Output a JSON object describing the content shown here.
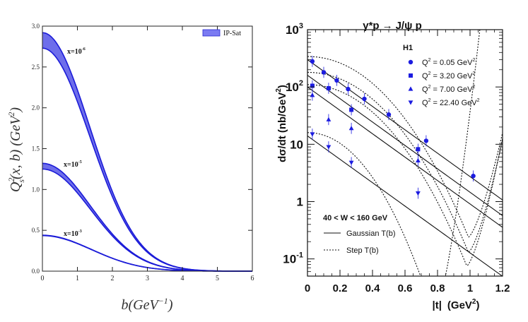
{
  "chart_data": [
    {
      "type": "area",
      "title": "",
      "xlabel": "b(GeV^-1)",
      "ylabel": "Q_s^2(x, b) (GeV^2)",
      "xlim": [
        0,
        6
      ],
      "ylim": [
        0,
        3.0
      ],
      "x_ticks": [
        "0",
        "1",
        "2",
        "3",
        "4",
        "5",
        "6"
      ],
      "y_ticks": [
        "0.0",
        "0.5",
        "1.0",
        "1.5",
        "2.0",
        "2.5",
        "3.0"
      ],
      "legend": {
        "label": "IP-Sat",
        "position": "top-right",
        "color": "#7b7bf2"
      },
      "band_color": "#5555e8",
      "line_color": "#1b1bd8",
      "series": [
        {
          "name": "x=10^-6",
          "label_base": "x=10",
          "label_exp": "-6",
          "upper_b0": 2.92,
          "lower_b0": 2.73,
          "sigma": 1.35
        },
        {
          "name": "x=10^-5",
          "label_base": "x=10",
          "label_exp": "-5",
          "upper_b0": 1.32,
          "lower_b0": 1.25,
          "sigma": 1.37
        },
        {
          "name": "x=10^-3",
          "label_base": "x=10",
          "label_exp": "-3",
          "upper_b0": 0.44,
          "lower_b0": 0.435,
          "sigma": 1.4
        }
      ]
    },
    {
      "type": "scatter",
      "title_parts": {
        "lhs": "γ*p",
        "arrow": "→",
        "rhs": "J/ψ p"
      },
      "xlabel_main": "|t|",
      "xlabel_unit_open": "(GeV",
      "xlabel_unit_exp": "2",
      "xlabel_unit_close": ")",
      "ylabel_main": "dσ/dt",
      "ylabel_unit_open": "(nb/GeV",
      "ylabel_unit_exp": "2",
      "ylabel_unit_close": ")",
      "xlim": [
        0,
        1.2
      ],
      "ylim_log10": [
        -1.3,
        3.0
      ],
      "y_scale": "log",
      "x_ticks": [
        "0",
        "0.2",
        "0.4",
        "0.6",
        "0.8",
        "1",
        "1.2"
      ],
      "y_ticks": [
        {
          "base": "10",
          "exp": "-1",
          "value": 0.1
        },
        {
          "base": "1",
          "exp": "",
          "value": 1
        },
        {
          "base": "10",
          "exp": "",
          "value": 10
        },
        {
          "base": "10",
          "exp": "2",
          "value": 100
        },
        {
          "base": "10",
          "exp": "3",
          "value": 1000
        }
      ],
      "experiment": "H1",
      "w_range": "40 < W < 160 GeV",
      "legend_lines": [
        {
          "label": "Gaussian T(b)",
          "style": "solid"
        },
        {
          "label": "Step T(b)",
          "style": "dotted"
        }
      ],
      "marker_color": "#1c1ce0",
      "series": [
        {
          "name": "Q2 = 0.05 GeV2",
          "legend_prefix": "Q",
          "legend_mid": " =  0.05 GeV",
          "marker": "circle",
          "points": [
            [
              0.03,
              280
            ],
            [
              0.1,
              180
            ],
            [
              0.18,
              130
            ],
            [
              0.25,
              92
            ],
            [
              0.35,
              62
            ],
            [
              0.5,
              33
            ],
            [
              0.73,
              11.5
            ],
            [
              1.02,
              2.8
            ]
          ],
          "gauss_a": 300,
          "gauss_b": 4.7,
          "step_a": 340,
          "step_curv": 6.0,
          "step_min_t": 0.99,
          "step_min": 0.24
        },
        {
          "name": "Q2 = 3.20 GeV2",
          "legend_prefix": "Q",
          "legend_mid": " =  3.20 GeV",
          "marker": "square",
          "points": [
            [
              0.03,
              105
            ],
            [
              0.13,
              95
            ],
            [
              0.27,
              40
            ],
            [
              0.68,
              8.2
            ]
          ],
          "gauss_a": 160,
          "gauss_b": 4.7,
          "step_a": 180,
          "step_curv": 6.5,
          "step_min_t": 0.99,
          "step_min": 0.13
        },
        {
          "name": "Q2 = 7.00 GeV2",
          "legend_prefix": "Q",
          "legend_mid": " =  7.00 GeV",
          "marker": "triangle-up",
          "points": [
            [
              0.03,
              72
            ],
            [
              0.13,
              27
            ],
            [
              0.27,
              19
            ],
            [
              0.68,
              5.2
            ]
          ],
          "gauss_a": 100,
          "gauss_b": 4.7,
          "step_a": 110,
          "step_curv": 6.9,
          "step_min_t": 0.98,
          "step_min": 0.075
        },
        {
          "name": "Q2 = 22.40 GeV2",
          "legend_prefix": "Q",
          "legend_mid": " = 22.40 GeV",
          "marker": "triangle-down",
          "points": [
            [
              0.03,
              15
            ],
            [
              0.13,
              9
            ],
            [
              0.27,
              4.8
            ],
            [
              0.68,
              1.4
            ]
          ],
          "gauss_a": 14,
          "gauss_b": 4.7,
          "step_a": 16,
          "step_curv": 11.0,
          "step_min_t": 0.78,
          "step_min": 0.01
        }
      ]
    }
  ]
}
